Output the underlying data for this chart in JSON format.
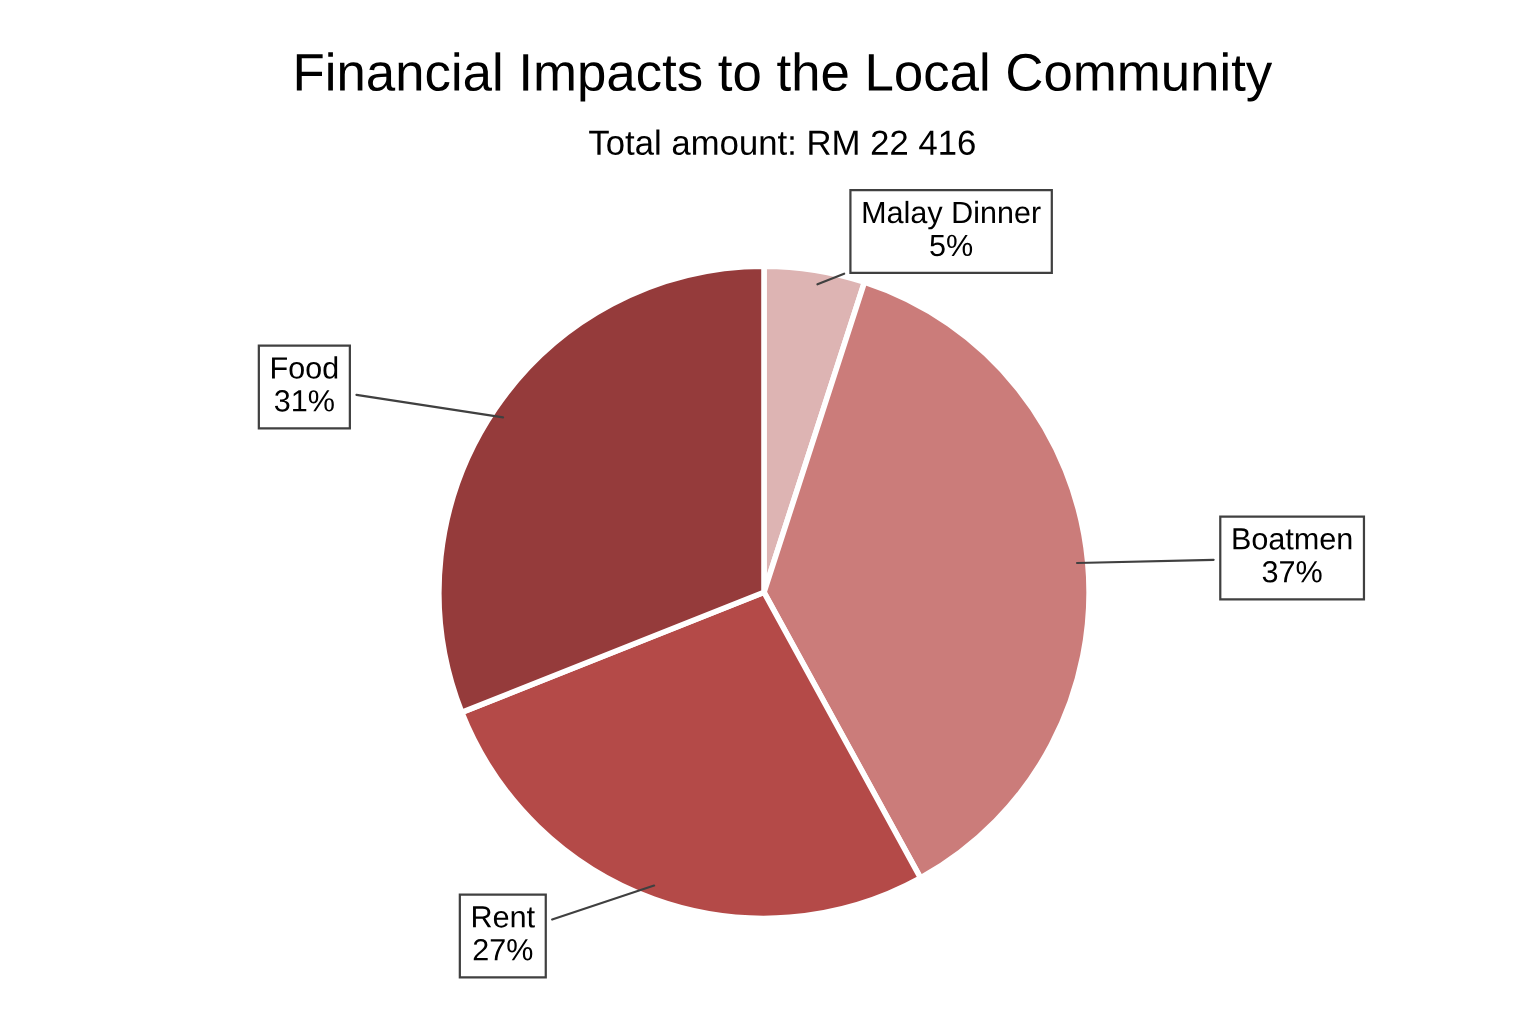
{
  "chart_data": {
    "type": "pie",
    "title": "Financial Impacts to the Local Community",
    "subtitle": "Total amount: RM 22 416",
    "categories": [
      "Malay Dinner",
      "Boatmen",
      "Rent",
      "Food"
    ],
    "values": [
      5,
      37,
      27,
      31
    ],
    "value_labels": [
      "5%",
      "37%",
      "27%",
      "31%"
    ],
    "colors": [
      "#ddb4b3",
      "#cb7c7a",
      "#b44a48",
      "#953b3b"
    ],
    "legend": false
  }
}
